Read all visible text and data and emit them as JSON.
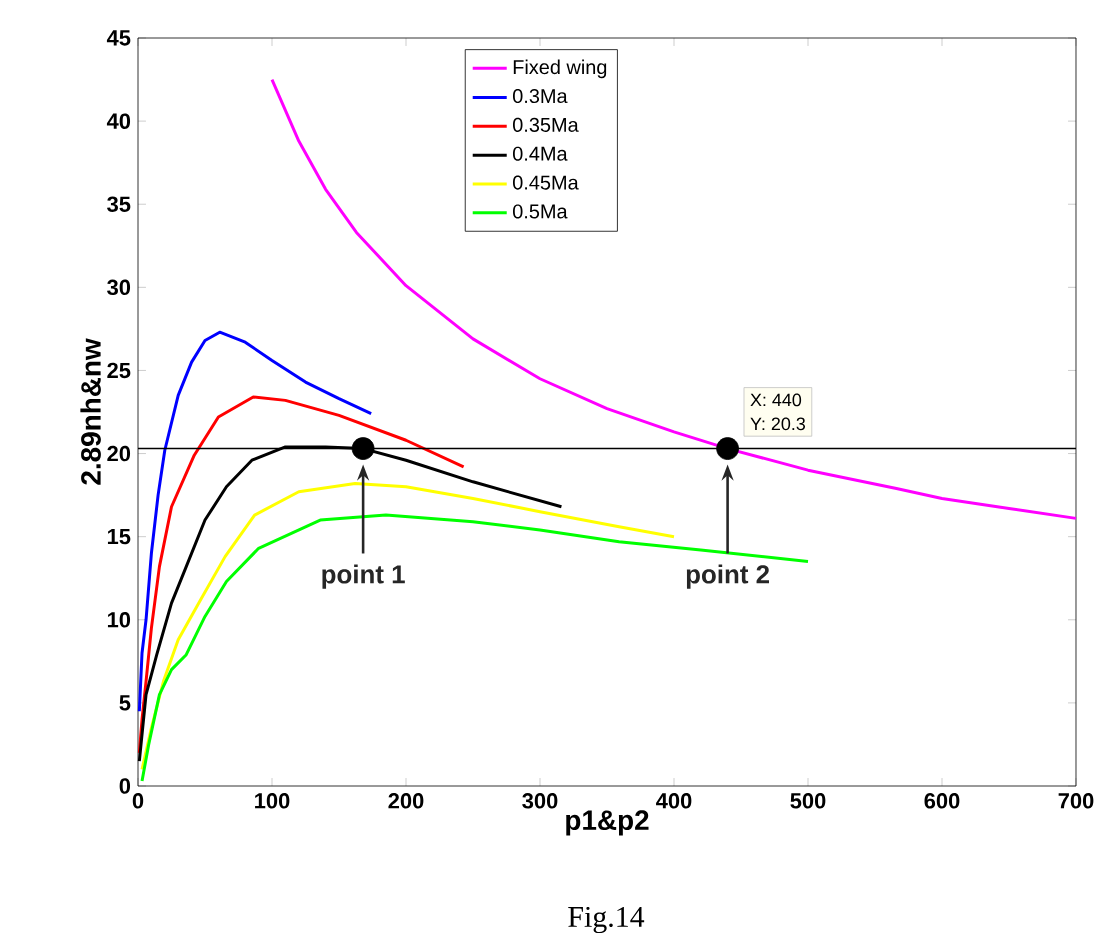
{
  "chart_data": {
    "type": "line",
    "xlabel": "p1&p2",
    "ylabel": "2.89nh&nw",
    "xlim": [
      0,
      700
    ],
    "xticks": [
      0,
      100,
      200,
      300,
      400,
      500,
      600,
      700
    ],
    "ylim": [
      0,
      45
    ],
    "yticks": [
      0,
      5,
      10,
      15,
      20,
      25,
      30,
      35,
      40,
      45
    ],
    "legend": "top",
    "marker": "none",
    "line_style": "solid",
    "series": [
      {
        "name": "Fixed wing",
        "color": "#ff00ff",
        "x": [
          100,
          120,
          140,
          163,
          200,
          250,
          300,
          350,
          400,
          440,
          500,
          566,
          600,
          650,
          700
        ],
        "values": [
          42.5,
          38.8,
          35.9,
          33.3,
          30.1,
          26.9,
          24.5,
          22.7,
          21.3,
          20.3,
          19.0,
          17.9,
          17.3,
          16.7,
          16.1
        ]
      },
      {
        "name": "0.3Ma",
        "color": "#0000ff",
        "x": [
          1,
          3,
          6,
          10,
          15,
          20,
          30,
          40,
          50,
          61,
          80,
          100,
          125,
          150,
          174
        ],
        "values": [
          4.5,
          8,
          10,
          14,
          17.5,
          20.2,
          23.5,
          25.5,
          26.8,
          27.3,
          26.7,
          25.6,
          24.3,
          23.3,
          22.4
        ]
      },
      {
        "name": "0.35Ma",
        "color": "#ff0000",
        "x": [
          1,
          3,
          6,
          10,
          16,
          25,
          42,
          60,
          86,
          110,
          150,
          200,
          243
        ],
        "values": [
          2,
          4,
          6.3,
          9.5,
          13.2,
          16.8,
          19.9,
          22.2,
          23.4,
          23.2,
          22.3,
          20.8,
          19.2
        ]
      },
      {
        "name": "0.4Ma",
        "color": "#000000",
        "x": [
          1,
          6,
          14,
          25,
          36,
          50,
          66,
          85,
          110,
          140,
          168,
          200,
          250,
          316
        ],
        "values": [
          1.5,
          5.5,
          7.9,
          11,
          13.2,
          16,
          18,
          19.6,
          20.4,
          20.4,
          20.3,
          19.6,
          18.3,
          16.8
        ]
      },
      {
        "name": "0.45Ma",
        "color": "#ffff00",
        "x": [
          3,
          10,
          19,
          30,
          46,
          65,
          87,
          120,
          162,
          200,
          250,
          300,
          359,
          400
        ],
        "values": [
          1,
          3.5,
          6.3,
          8.8,
          11.1,
          13.8,
          16.3,
          17.7,
          18.2,
          18,
          17.3,
          16.5,
          15.6,
          15
        ]
      },
      {
        "name": "0.5Ma",
        "color": "#00ff00",
        "x": [
          3,
          8,
          16,
          25,
          36,
          50,
          66,
          90,
          136,
          185,
          250,
          300,
          359,
          420,
          500
        ],
        "values": [
          0.3,
          2.5,
          5.5,
          7,
          7.9,
          10.2,
          12.3,
          14.3,
          16,
          16.3,
          15.9,
          15.4,
          14.7,
          14.2,
          13.5
        ]
      },
      {
        "type": "scatter",
        "marker": "circle",
        "color": "#000000",
        "x": [
          168,
          440
        ],
        "values": [
          20.3,
          20.3
        ]
      }
    ],
    "ref_lines": [
      {
        "axis": "y",
        "value": 20.3,
        "color": "#000000"
      }
    ],
    "annotations": [
      "point 1",
      "point 2",
      {
        "text": "X: 440",
        "x": 440,
        "y": 20.3
      },
      "Y: 20.3",
      "Fig.14"
    ]
  }
}
